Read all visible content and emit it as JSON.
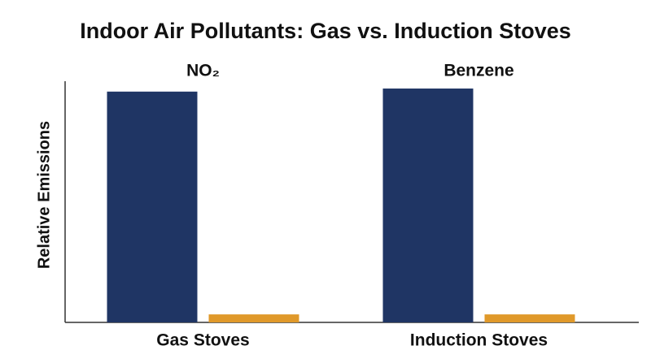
{
  "chart_data": {
    "type": "bar",
    "title": "Indoor Air Pollutants: Gas vs. Induction Stoves",
    "ylabel": "Relative Emissions",
    "categories": [
      "Gas Stoves",
      "Induction Stoves"
    ],
    "group_titles": [
      "NO₂",
      "Benzene"
    ],
    "series": [
      {
        "color": "#1f3564",
        "values": [
          98,
          99.3
        ]
      },
      {
        "color": "#e0992a",
        "values": [
          3.4,
          3.4
        ]
      }
    ],
    "ylim": [
      0,
      100
    ]
  }
}
